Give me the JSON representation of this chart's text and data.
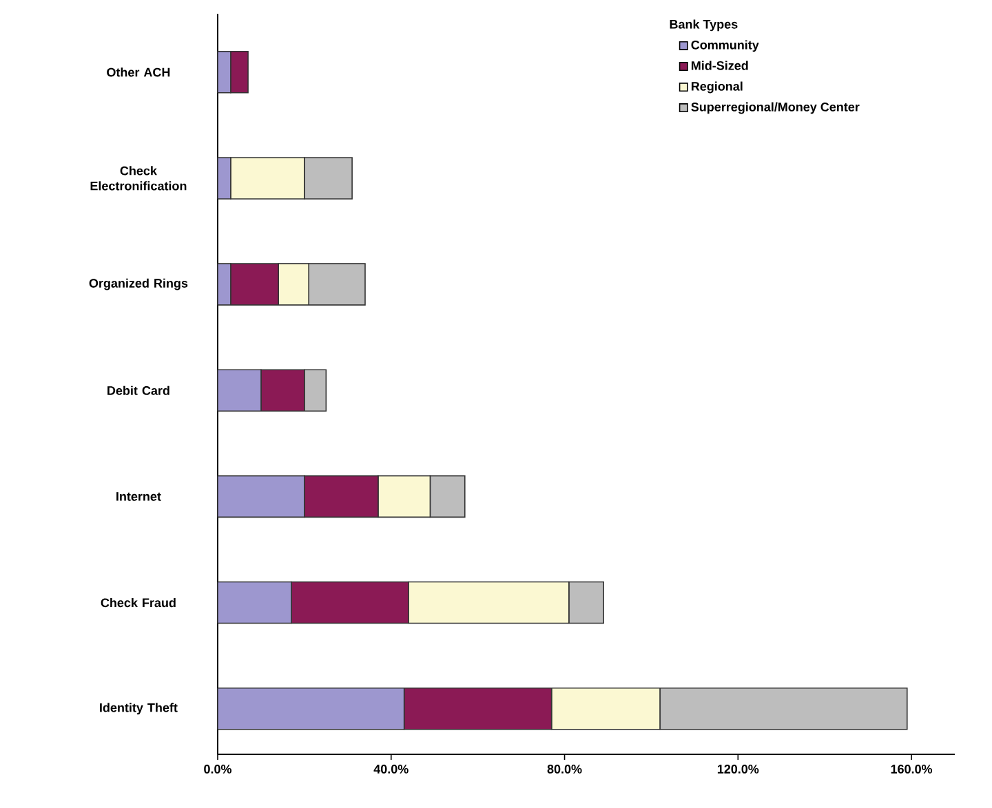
{
  "chart_data": {
    "type": "bar",
    "orientation": "horizontal",
    "stacked": true,
    "legend_title": "Bank Types",
    "legend": "top right",
    "categories": [
      "Other ACH",
      "Check Electronification",
      "Organized Rings",
      "Debit Card",
      "Internet",
      "Check Fraud",
      "Identity Theft"
    ],
    "series": [
      {
        "name": "Community",
        "color": "#9d97cf",
        "values": [
          3,
          3,
          3,
          10,
          20,
          17,
          43
        ]
      },
      {
        "name": "Mid-Sized",
        "color": "#8b1a55",
        "values": [
          4,
          0,
          11,
          10,
          17,
          27,
          34
        ]
      },
      {
        "name": "Regional",
        "color": "#fbf8d2",
        "values": [
          0,
          17,
          7,
          0,
          12,
          37,
          25
        ]
      },
      {
        "name": "Superregional/Money Center",
        "color": "#bdbdbd",
        "values": [
          0,
          11,
          13,
          5,
          8,
          8,
          57
        ]
      }
    ],
    "xlim": [
      0,
      170
    ],
    "xticks": [
      {
        "value": 0,
        "label": "0.0%"
      },
      {
        "value": 40,
        "label": "40.0%"
      },
      {
        "value": 80,
        "label": "80.0%"
      },
      {
        "value": 120,
        "label": "120.0%"
      },
      {
        "value": 160,
        "label": "160.0%"
      }
    ],
    "grid": false
  }
}
